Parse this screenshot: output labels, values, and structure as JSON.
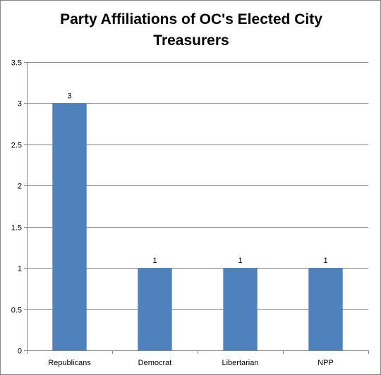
{
  "chart_data": {
    "type": "bar",
    "title": "Party Affiliations of OC's Elected City Treasurers",
    "categories": [
      "Republicans",
      "Democrat",
      "Libertarian",
      "NPP"
    ],
    "values": [
      3,
      1,
      1,
      1
    ],
    "data_labels": [
      "3",
      "1",
      "1",
      "1"
    ],
    "y_ticks": [
      "0",
      "0.5",
      "1",
      "1.5",
      "2",
      "2.5",
      "3",
      "3.5"
    ],
    "ylim": [
      0,
      3.5
    ],
    "xlabel": "",
    "ylabel": "",
    "grid": true,
    "legend": "none",
    "bar_color": "#4F81BD",
    "gridline_color": "#868686"
  }
}
